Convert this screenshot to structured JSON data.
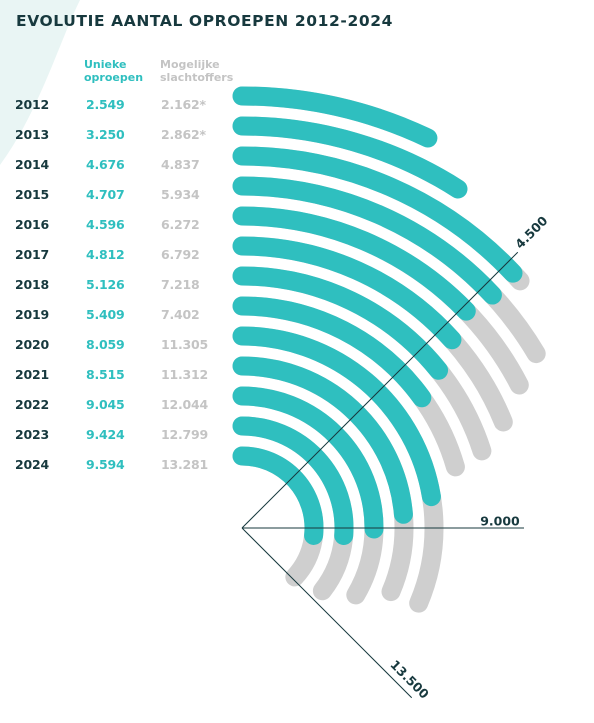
{
  "title": "EVOLUTIE AANTAL OPROEPEN 2012-2024",
  "columns": {
    "unique_calls": "Unieke oproepen",
    "possible_victims": "Mogelijke slachtoffers"
  },
  "colors": {
    "dark": "#17393e",
    "teal": "#2fbfbf",
    "grey": "#cfcfcf",
    "background_blob": "#e9f5f4"
  },
  "rows": [
    {
      "year": "2012",
      "unique": "2.549",
      "victims": "2.162*"
    },
    {
      "year": "2013",
      "unique": "3.250",
      "victims": "2.862*"
    },
    {
      "year": "2014",
      "unique": "4.676",
      "victims": "4.837"
    },
    {
      "year": "2015",
      "unique": "4.707",
      "victims": "5.934"
    },
    {
      "year": "2016",
      "unique": "4.596",
      "victims": "6.272"
    },
    {
      "year": "2017",
      "unique": "4.812",
      "victims": "6.792"
    },
    {
      "year": "2018",
      "unique": "5.126",
      "victims": "7.218"
    },
    {
      "year": "2019",
      "unique": "5.409",
      "victims": "7.402"
    },
    {
      "year": "2020",
      "unique": "8.059",
      "victims": "11.305"
    },
    {
      "year": "2021",
      "unique": "8.515",
      "victims": "11.312"
    },
    {
      "year": "2022",
      "unique": "9.045",
      "victims": "12.044"
    },
    {
      "year": "2023",
      "unique": "9.424",
      "victims": "12.799"
    },
    {
      "year": "2024",
      "unique": "9.594",
      "victims": "13.281"
    }
  ],
  "chart_data": {
    "type": "radial-bar",
    "categories": [
      "2012",
      "2013",
      "2014",
      "2015",
      "2016",
      "2017",
      "2018",
      "2019",
      "2020",
      "2021",
      "2022",
      "2023",
      "2024"
    ],
    "series": [
      {
        "name": "Unieke oproepen",
        "color": "#2fbfbf",
        "values": [
          2549,
          3250,
          4676,
          4707,
          4596,
          4812,
          5126,
          5409,
          8059,
          8515,
          9045,
          9424,
          9594
        ]
      },
      {
        "name": "Mogelijke slachtoffers",
        "color": "#cfcfcf",
        "values": [
          2162,
          2862,
          4837,
          5934,
          6272,
          6792,
          7218,
          7402,
          11305,
          11312,
          12044,
          12799,
          13281
        ]
      }
    ],
    "axis_ticks": [
      {
        "value": 4500,
        "label": "4.500"
      },
      {
        "value": 9000,
        "label": "9.000"
      },
      {
        "value": 13500,
        "label": "13.500"
      }
    ],
    "scale_max": 13500
  }
}
